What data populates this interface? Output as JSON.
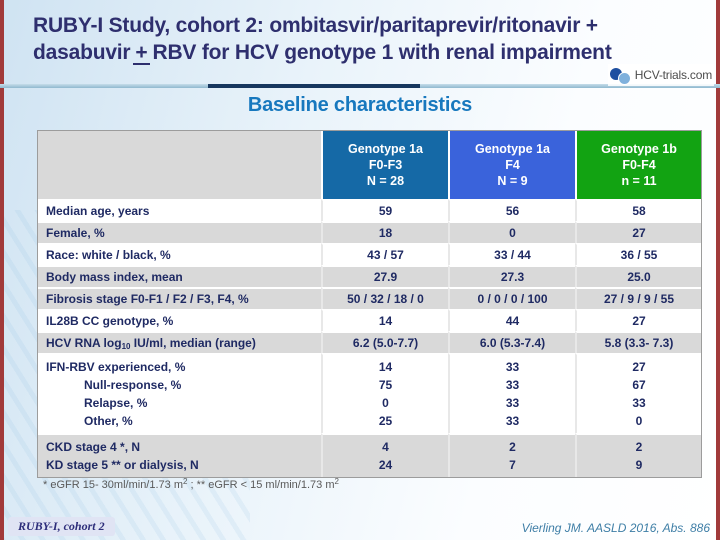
{
  "slide": {
    "title": {
      "line1": "RUBY-I Study, cohort 2: ombitasvir/paritaprevir/ritonavir +",
      "line2_pre": "dasabuvir",
      "line2_plusminus": "+",
      "line2_post": "RBV for HCV genotype 1 with renal impairment"
    },
    "logo": {
      "text": "HCV-trials.com"
    },
    "section_heading": "Baseline characteristics",
    "colors": {
      "header_col1": "#1569A6",
      "header_col2": "#3A63DB",
      "header_col3": "#12A312",
      "divider_navy": "#17375E",
      "divider_blue": "#A6CBDC",
      "edge_red": "#A13A3A",
      "row_gray": "#D9D9D9",
      "text_navy": "#1F2A63",
      "heading_blue": "#1778BE"
    },
    "table": {
      "headers": [
        {
          "lines": [
            "Genotype 1a",
            "F0-F3",
            "N = 28"
          ],
          "color_key": "header_col1"
        },
        {
          "lines": [
            "Genotype 1a",
            "F4",
            "N = 9"
          ],
          "color_key": "header_col2"
        },
        {
          "lines": [
            "Genotype 1b",
            "F0-F4",
            "n = 11"
          ],
          "color_key": "header_col3"
        }
      ],
      "rows": [
        {
          "label": "Median age, years",
          "values": [
            "59",
            "56",
            "58"
          ],
          "shade": "white"
        },
        {
          "label": "Female, %",
          "values": [
            "18",
            "0",
            "27"
          ],
          "shade": "gray"
        },
        {
          "label": "Race: white / black, %",
          "values": [
            "43 / 57",
            "33 / 44",
            "36 / 55"
          ],
          "shade": "white"
        },
        {
          "label": "Body mass index, mean",
          "values": [
            "27.9",
            "27.3",
            "25.0"
          ],
          "shade": "gray"
        },
        {
          "label": "Fibrosis stage F0-F1 / F2 / F3, F4, %",
          "values": [
            "50 / 32 / 18 / 0",
            "0 / 0 / 0 / 100",
            "27 / 9 / 9 / 55"
          ],
          "shade": "gray"
        },
        {
          "label": "IL28B CC genotype, %",
          "values": [
            "14",
            "44",
            "27"
          ],
          "shade": "white"
        },
        {
          "label_parts": {
            "pre": "HCV RNA log",
            "sub": "10",
            "post": " IU/ml, median (range)"
          },
          "values": [
            "6.2 (5.0-7.7)",
            "6.0 (5.3-7.4)",
            "5.8 (3.3- 7.3)"
          ],
          "shade": "gray"
        },
        {
          "label_lines": [
            "IFN-RBV experienced, %",
            "Null-response, %",
            "Relapse, %",
            "Other, %"
          ],
          "indent_sub": true,
          "values_lines": [
            [
              "14",
              "75",
              "0",
              "25"
            ],
            [
              "33",
              "33",
              "33",
              "33"
            ],
            [
              "27",
              "67",
              "33",
              "0"
            ]
          ],
          "shade": "white"
        },
        {
          "label_lines": [
            "CKD stage 4 *, N",
            "KD stage 5 ** or dialysis, N"
          ],
          "indent_sub": false,
          "values_lines": [
            [
              "4",
              "24"
            ],
            [
              "2",
              "7"
            ],
            [
              "2",
              "9"
            ]
          ],
          "shade": "gray"
        }
      ]
    },
    "footnote": {
      "part1": "* eGFR 15- 30ml/min/1.73 m",
      "sup1": "2",
      "part2": " ; ** eGFR < 15 ml/min/1.73 m",
      "sup2": "2"
    },
    "footer": {
      "left": "RUBY-I, cohort 2",
      "right": "Vierling JM. AASLD 2016, Abs. 886"
    }
  }
}
